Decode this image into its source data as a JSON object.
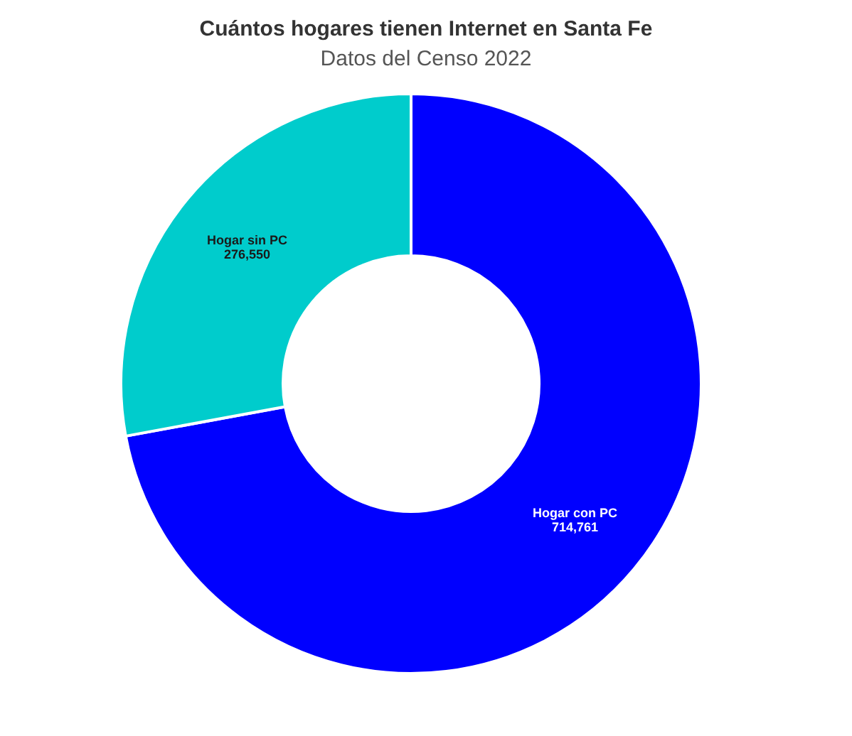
{
  "chart_data": {
    "type": "donut",
    "title": "Cuántos hogares tienen Internet en Santa Fe",
    "subtitle": "Datos del Censo 2022",
    "categories": [
      "Hogar con PC",
      "Hogar sin PC"
    ],
    "values": [
      714761,
      276550
    ],
    "colors": [
      "#0000ff",
      "#00cccc"
    ],
    "value_labels": [
      "714,761",
      "276,550"
    ]
  }
}
